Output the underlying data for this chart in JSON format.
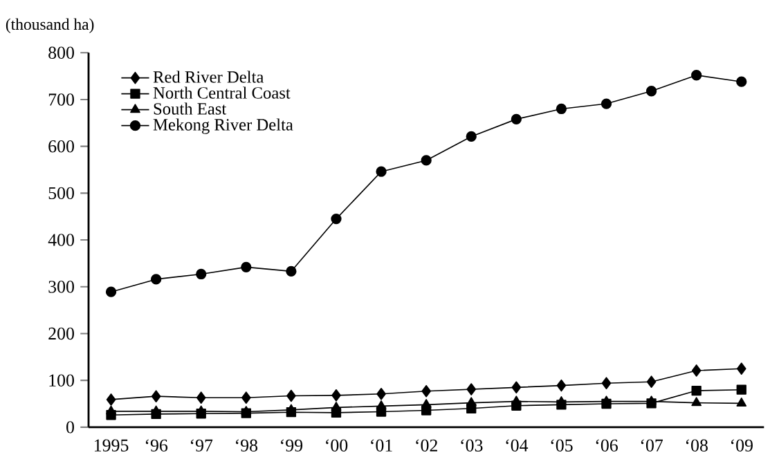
{
  "chart_data": {
    "type": "line",
    "ylabel": "(thousand ha)",
    "categories": [
      "1995",
      "‘96",
      "‘97",
      "‘98",
      "‘99",
      "‘00",
      "‘01",
      "‘02",
      "‘03",
      "‘04",
      "‘05",
      "‘06",
      "‘07",
      "‘08",
      "‘09"
    ],
    "series": [
      {
        "name": "Red River Delta",
        "color": "#000000",
        "marker": "diamond",
        "values": [
          59,
          66,
          63,
          63,
          67,
          68,
          71,
          77,
          81,
          85,
          89,
          94,
          97,
          121,
          125
        ]
      },
      {
        "name": "North Central Coast",
        "color": "#000000",
        "marker": "square",
        "values": [
          26,
          28,
          29,
          30,
          32,
          31,
          33,
          36,
          40,
          46,
          48,
          50,
          51,
          78,
          80
        ]
      },
      {
        "name": "South East",
        "color": "#000000",
        "marker": "triangle",
        "values": [
          34,
          34,
          34,
          33,
          37,
          42,
          45,
          48,
          52,
          55,
          54,
          55,
          55,
          52,
          51
        ]
      },
      {
        "name": "Mekong River Delta",
        "color": "#000000",
        "marker": "circle",
        "values": [
          289,
          316,
          327,
          342,
          333,
          445,
          546,
          570,
          621,
          658,
          680,
          691,
          718,
          752,
          738
        ]
      }
    ],
    "ylim": [
      0,
      800
    ],
    "yticks": [
      0,
      100,
      200,
      300,
      400,
      500,
      600,
      700,
      800
    ],
    "legend": "top left",
    "grid": false,
    "line_style": "solid"
  }
}
